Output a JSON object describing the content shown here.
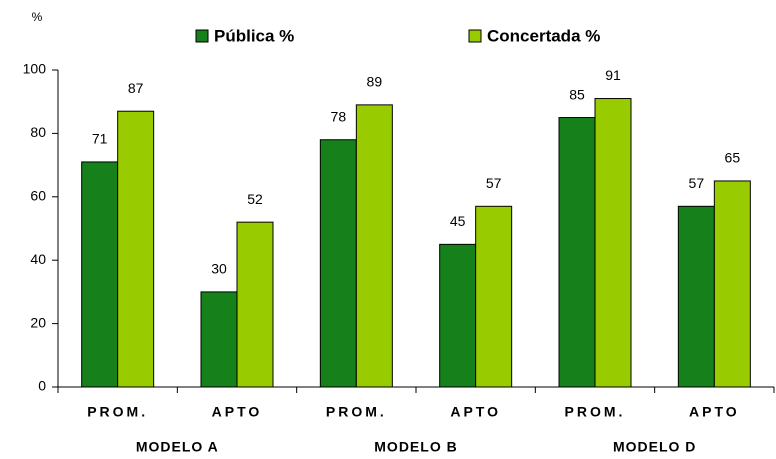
{
  "chart_data": {
    "type": "bar",
    "y_label": "%",
    "categories": [
      "PROM.",
      "APTO",
      "PROM.",
      "APTO",
      "PROM.",
      "APTO"
    ],
    "group_labels": [
      "MODELO A",
      "MODELO B",
      "MODELO D"
    ],
    "series": [
      {
        "name": "Pública %",
        "color": "#16801a",
        "values": [
          71,
          30,
          78,
          45,
          85,
          57
        ]
      },
      {
        "name": "Concertada %",
        "color": "#99cc00",
        "values": [
          87,
          52,
          89,
          57,
          91,
          65
        ]
      }
    ],
    "ylim": [
      0,
      100
    ],
    "yticks": [
      0,
      20,
      40,
      60,
      80,
      100
    ],
    "grid": false,
    "legend": "top"
  }
}
